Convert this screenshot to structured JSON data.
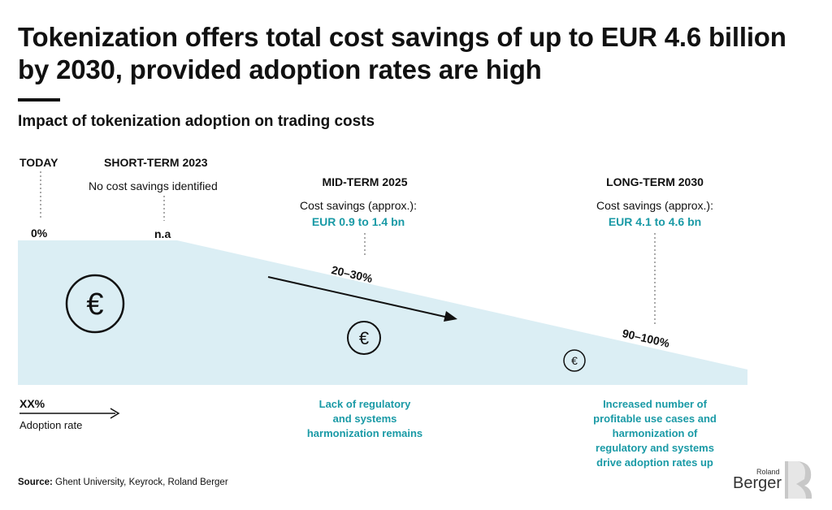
{
  "header": {
    "title": "Tokenization offers total cost savings of up to EUR 4.6 billion by 2030, provided adoption rates are high",
    "subtitle": "Impact of tokenization adoption on trading costs"
  },
  "phases": [
    {
      "label": "TODAY",
      "rate": "0%"
    },
    {
      "label": "SHORT-TERM 2023",
      "detail": "No cost savings identified",
      "rate": "n.a"
    },
    {
      "label": "MID-TERM 2025",
      "detail": "Cost savings (approx.):",
      "savings": "EUR 0.9 to 1.4 bn",
      "rate": "20–30%"
    },
    {
      "label": "LONG-TERM 2030",
      "detail": "Cost savings (approx.):",
      "savings": "EUR 4.1 to 4.6 bn",
      "rate": "90–100%"
    }
  ],
  "legend": {
    "rate_placeholder": "XX%",
    "axis_label": "Adoption rate"
  },
  "notes": {
    "mid_line1": "Lack of regulatory",
    "mid_line2": "and systems",
    "mid_line3": "harmonization remains",
    "long_line1": "Increased number of",
    "long_line2": "profitable use cases and",
    "long_line3": "harmonization of",
    "long_line4": "regulatory and systems",
    "long_line5": "drive adoption rates up"
  },
  "source": {
    "label": "Source:",
    "text": "Ghent University, Keyrock, Roland Berger"
  },
  "logo": {
    "small": "Roland",
    "big": "Berger"
  },
  "icons": {
    "euro": "€"
  },
  "colors": {
    "area": "#dbeef4",
    "teal": "#1a9aa6",
    "text": "#111111"
  },
  "chart_data": {
    "type": "area",
    "categories": [
      "TODAY",
      "SHORT-TERM 2023",
      "MID-TERM 2025",
      "LONG-TERM 2030"
    ],
    "adoption_rate_labels": [
      "0%",
      "n.a",
      "20–30%",
      "90–100%"
    ],
    "cost_savings_eur_bn": [
      null,
      null,
      [
        0.9,
        1.4
      ],
      [
        4.1,
        4.6
      ]
    ]
  }
}
